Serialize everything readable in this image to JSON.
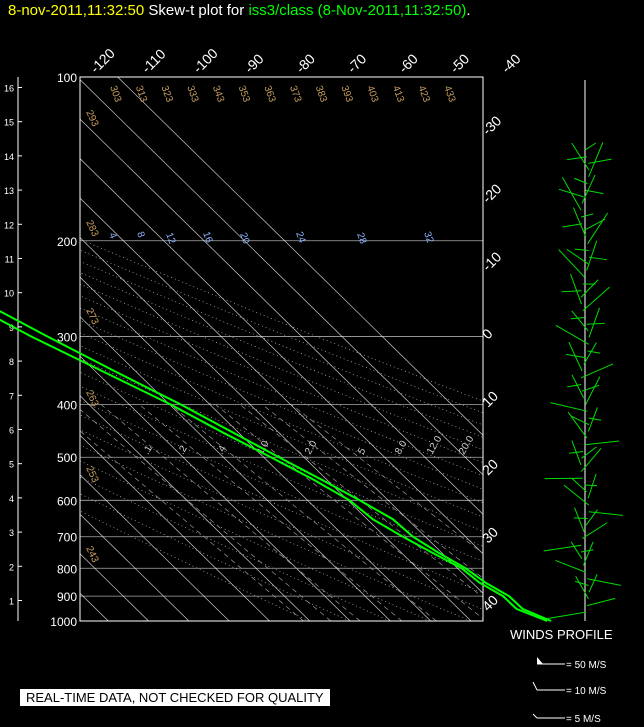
{
  "header": {
    "timestamp": "8-nov-2011,11:32:50",
    "title_prefix": "Skew-t plot for",
    "source": "iss3/class (8-Nov-2011,11:32:50)",
    "title_suffix": "."
  },
  "disclaimer": "REAL-TIME DATA, NOT CHECKED FOR QUALITY",
  "colors": {
    "background": "#000000",
    "temperature": "#00ff00",
    "dewpoint": "#00ff00",
    "isotherm": "#ffffff",
    "dry_adiabat": "#c8a060",
    "mixing_ratio": "#8ab4ff",
    "title_time": "#ffff00",
    "title_source": "#00ff00"
  },
  "chart_data": {
    "type": "line",
    "title": "Skew-t plot for iss3/class (8-Nov-2011,11:32:50).",
    "pressure_levels": [
      100,
      200,
      300,
      400,
      500,
      600,
      700,
      800,
      900,
      1000
    ],
    "height_km_ticks": [
      1,
      2,
      3,
      4,
      5,
      6,
      7,
      8,
      9,
      10,
      11,
      12,
      13,
      14,
      15,
      16
    ],
    "isotherm_labels_top": [
      "-120",
      "-110",
      "-100",
      "-90",
      "-80",
      "-70",
      "-60",
      "-50",
      "-40"
    ],
    "isotherm_labels_right": [
      "-30",
      "-20",
      "-10",
      "0",
      "10",
      "20",
      "30",
      "40"
    ],
    "dry_adiabat_labels": [
      "303",
      "313",
      "323",
      "333",
      "343",
      "353",
      "363",
      "373",
      "383",
      "393",
      "403",
      "413",
      "423",
      "433"
    ],
    "dry_adiabat_left_labels": [
      "293",
      "283",
      "273",
      "263",
      "253",
      "243"
    ],
    "mixing_ratio_labels": [
      "4",
      "8",
      "12",
      "16",
      "20",
      "24",
      "28",
      "32"
    ],
    "lower_mixing_ratio_labels": [
      ".1",
      ".2",
      ".4",
      "1.0",
      "2.0",
      "5",
      "8.0",
      "12.0",
      "20.0"
    ],
    "series": [
      {
        "values": [
          [
            1000,
            19.5
          ],
          [
            950,
            16.5
          ],
          [
            900,
            15.0
          ],
          [
            850,
            14.0
          ],
          [
            800,
            11.5
          ],
          [
            750,
            9.5
          ],
          [
            700,
            7.0
          ],
          [
            650,
            6.0
          ],
          [
            600,
            3.0
          ],
          [
            550,
            -1.0
          ],
          [
            500,
            -6.0
          ],
          [
            450,
            -11.5
          ],
          [
            400,
            -17.5
          ],
          [
            350,
            -25.0
          ],
          [
            300,
            -33.0
          ],
          [
            250,
            -42.0
          ],
          [
            200,
            -52.0
          ],
          [
            170,
            -58.0
          ],
          [
            150,
            -62.0
          ],
          [
            140,
            -64.0
          ],
          [
            135,
            -64.5
          ]
        ]
      },
      {
        "values": [
          [
            1000,
            18.5
          ],
          [
            950,
            15.0
          ],
          [
            900,
            13.5
          ],
          [
            850,
            12.5
          ],
          [
            800,
            10.5
          ],
          [
            750,
            8.0
          ],
          [
            700,
            4.5
          ],
          [
            650,
            1.0
          ],
          [
            600,
            0.5
          ],
          [
            550,
            -3.0
          ],
          [
            500,
            -8.0
          ],
          [
            450,
            -14.0
          ],
          [
            400,
            -20.0
          ],
          [
            350,
            -28.0
          ],
          [
            300,
            -37.0
          ],
          [
            250,
            -46.0
          ],
          [
            200,
            -56.0
          ],
          [
            170,
            -63.0
          ],
          [
            150,
            -68.0
          ],
          [
            140,
            -70.0
          ],
          [
            135,
            -70.5
          ]
        ]
      }
    ],
    "winds_profile": {
      "title": "WINDS PROFILE",
      "legend": [
        "= 50 M/S",
        "= 10 M/S",
        "= 5 M/S"
      ]
    }
  }
}
